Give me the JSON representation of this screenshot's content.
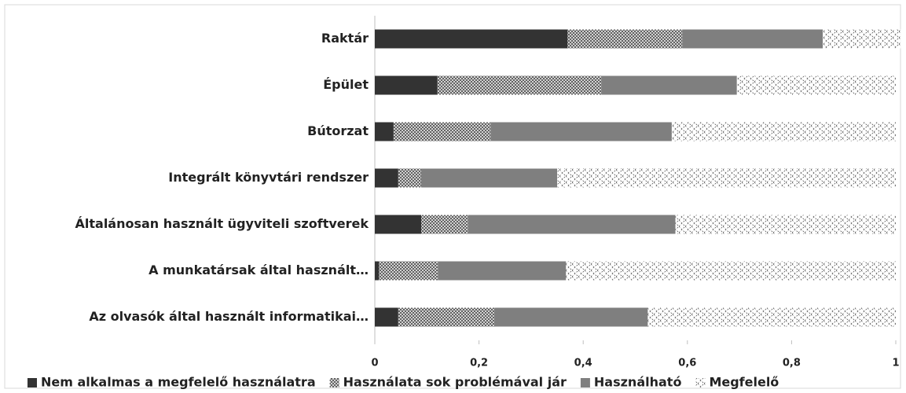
{
  "chart_data": {
    "type": "stacked_barh",
    "categories": [
      "Raktár",
      "Épület",
      "Bútorzat",
      "Integrált könyvtári rendszer",
      "Általánosan használt ügyviteli szoftverek",
      "A munkatársak által használt…",
      "Az olvasók által használt informatikai…"
    ],
    "series": [
      {
        "name": "Nem alkalmas a megfelelő használatra",
        "color": "#333333",
        "pattern": "solid",
        "values": [
          0.37,
          0.12,
          0.036,
          0.045,
          0.089,
          0.008,
          0.045
        ]
      },
      {
        "name": "Használata sok problémával jár",
        "color": "#555555",
        "pattern": "crosshatch",
        "values": [
          0.22,
          0.315,
          0.186,
          0.044,
          0.09,
          0.113,
          0.185
        ]
      },
      {
        "name": "Használható",
        "color": "#7f7f7f",
        "pattern": "solid",
        "values": [
          0.27,
          0.26,
          0.348,
          0.261,
          0.398,
          0.246,
          0.294
        ]
      },
      {
        "name": "Megfelelő",
        "color": "#444444",
        "pattern": "diagonal",
        "values": [
          0.15,
          0.305,
          0.43,
          0.65,
          0.423,
          0.633,
          0.476
        ]
      }
    ],
    "xlim": [
      0,
      1
    ],
    "xticks": [
      0,
      {
        "value": 0.2,
        "label": "0,2"
      },
      {
        "value": 0.4,
        "label": "0,4"
      },
      {
        "value": 0.6,
        "label": "0,6"
      },
      {
        "value": 0.8,
        "label": "0,8"
      },
      1
    ],
    "legend": "bottom"
  }
}
